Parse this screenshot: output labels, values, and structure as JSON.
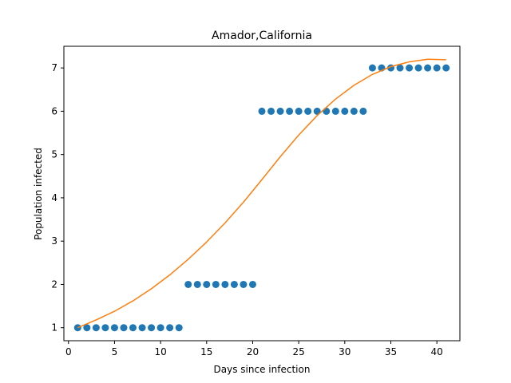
{
  "chart_data": {
    "type": "scatter",
    "title": "Amador,California",
    "xlabel": "Days since infection",
    "ylabel": "Population infected",
    "xlim": [
      -0.5,
      42.5
    ],
    "ylim": [
      0.7,
      7.5
    ],
    "xticks": [
      0,
      5,
      10,
      15,
      20,
      25,
      30,
      35,
      40
    ],
    "yticks": [
      1,
      2,
      3,
      4,
      5,
      6,
      7
    ],
    "grid": false,
    "series": [
      {
        "kind": "scatter",
        "color": "#1f77b4",
        "x": [
          1,
          2,
          3,
          4,
          5,
          6,
          7,
          8,
          9,
          10,
          11,
          12,
          13,
          14,
          15,
          16,
          17,
          18,
          19,
          20,
          21,
          22,
          23,
          24,
          25,
          26,
          27,
          28,
          29,
          30,
          31,
          32,
          33,
          34,
          35,
          36,
          37,
          38,
          39,
          40,
          41
        ],
        "y": [
          1,
          1,
          1,
          1,
          1,
          1,
          1,
          1,
          1,
          1,
          1,
          1,
          2,
          2,
          2,
          2,
          2,
          2,
          2,
          2,
          6,
          6,
          6,
          6,
          6,
          6,
          6,
          6,
          6,
          6,
          6,
          6,
          7,
          7,
          7,
          7,
          7,
          7,
          7,
          7,
          7
        ]
      },
      {
        "kind": "line",
        "color": "#ff7f0e",
        "x": [
          1,
          3,
          5,
          7,
          9,
          11,
          13,
          15,
          17,
          19,
          21,
          23,
          25,
          27,
          29,
          31,
          33,
          35,
          37,
          39,
          41
        ],
        "y": [
          1.0,
          1.18,
          1.38,
          1.62,
          1.9,
          2.22,
          2.58,
          2.98,
          3.42,
          3.9,
          4.42,
          4.95,
          5.45,
          5.9,
          6.28,
          6.6,
          6.85,
          7.03,
          7.14,
          7.2,
          7.19
        ]
      }
    ]
  }
}
